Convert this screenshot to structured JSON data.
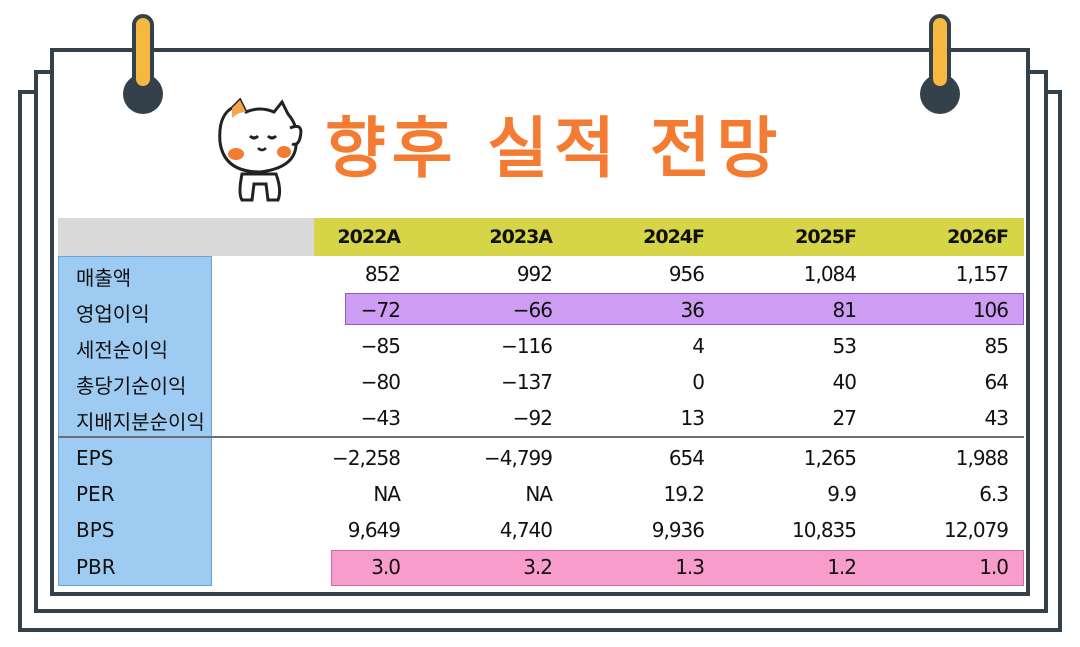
{
  "title": "향후 실적 전망",
  "colors": {
    "title": "#f47b32",
    "header_yellow": "#d6d447",
    "header_gray": "#d9d9d9",
    "label_column": "#9ecbf2",
    "highlight_operating_profit": "#cc9df2",
    "highlight_pbr": "#f89ccb",
    "frame": "#35414a",
    "clip": "#f5b942"
  },
  "table": {
    "years": [
      "2022A",
      "2023A",
      "2024F",
      "2025F",
      "2026F"
    ],
    "rows": [
      {
        "label": "매출액",
        "values": [
          "852",
          "992",
          "956",
          "1,084",
          "1,157"
        ]
      },
      {
        "label": "영업이익",
        "values": [
          "−72",
          "−66",
          "36",
          "81",
          "106"
        ]
      },
      {
        "label": "세전순이익",
        "values": [
          "−85",
          "−116",
          "4",
          "53",
          "85"
        ]
      },
      {
        "label": "총당기순이익",
        "values": [
          "−80",
          "−137",
          "0",
          "40",
          "64"
        ]
      },
      {
        "label": "지배지분순이익",
        "values": [
          "−43",
          "−92",
          "13",
          "27",
          "43"
        ]
      },
      {
        "label": "EPS",
        "values": [
          "−2,258",
          "−4,799",
          "654",
          "1,265",
          "1,988"
        ]
      },
      {
        "label": "PER",
        "values": [
          "NA",
          "NA",
          "19.2",
          "9.9",
          "6.3"
        ]
      },
      {
        "label": "BPS",
        "values": [
          "9,649",
          "4,740",
          "9,936",
          "10,835",
          "12,079"
        ]
      },
      {
        "label": "PBR",
        "values": [
          "3.0",
          "3.2",
          "1.3",
          "1.2",
          "1.0"
        ]
      }
    ]
  }
}
